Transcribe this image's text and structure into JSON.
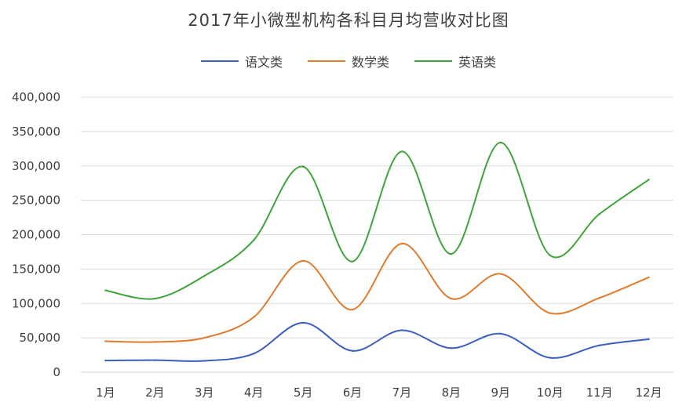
{
  "chart_data": {
    "type": "line",
    "title": "2017年小微型机构各科目月均营收对比图",
    "categories": [
      "1月",
      "2月",
      "3月",
      "4月",
      "5月",
      "6月",
      "7月",
      "8月",
      "9月",
      "10月",
      "11月",
      "12月"
    ],
    "y_ticks": [
      "0",
      "50,000",
      "100,000",
      "150,000",
      "200,000",
      "250,000",
      "300,000",
      "350,000",
      "400,000"
    ],
    "ylim": [
      0,
      400000
    ],
    "grid": true,
    "smooth": true,
    "legend_position": "top",
    "series": [
      {
        "name": "语文类",
        "color": "#3a5fbf",
        "values": [
          17000,
          17500,
          16500,
          27000,
          72000,
          31000,
          61000,
          35000,
          56000,
          21000,
          39000,
          48000
        ]
      },
      {
        "name": "数学类",
        "color": "#e07b2e",
        "values": [
          45000,
          44000,
          50000,
          80000,
          162000,
          91000,
          187000,
          107000,
          143000,
          86000,
          108000,
          138000
        ]
      },
      {
        "name": "英语类",
        "color": "#3fa43b",
        "values": [
          119000,
          107000,
          140000,
          192000,
          299000,
          161000,
          321000,
          172000,
          334000,
          170000,
          230000,
          280000
        ]
      }
    ]
  }
}
